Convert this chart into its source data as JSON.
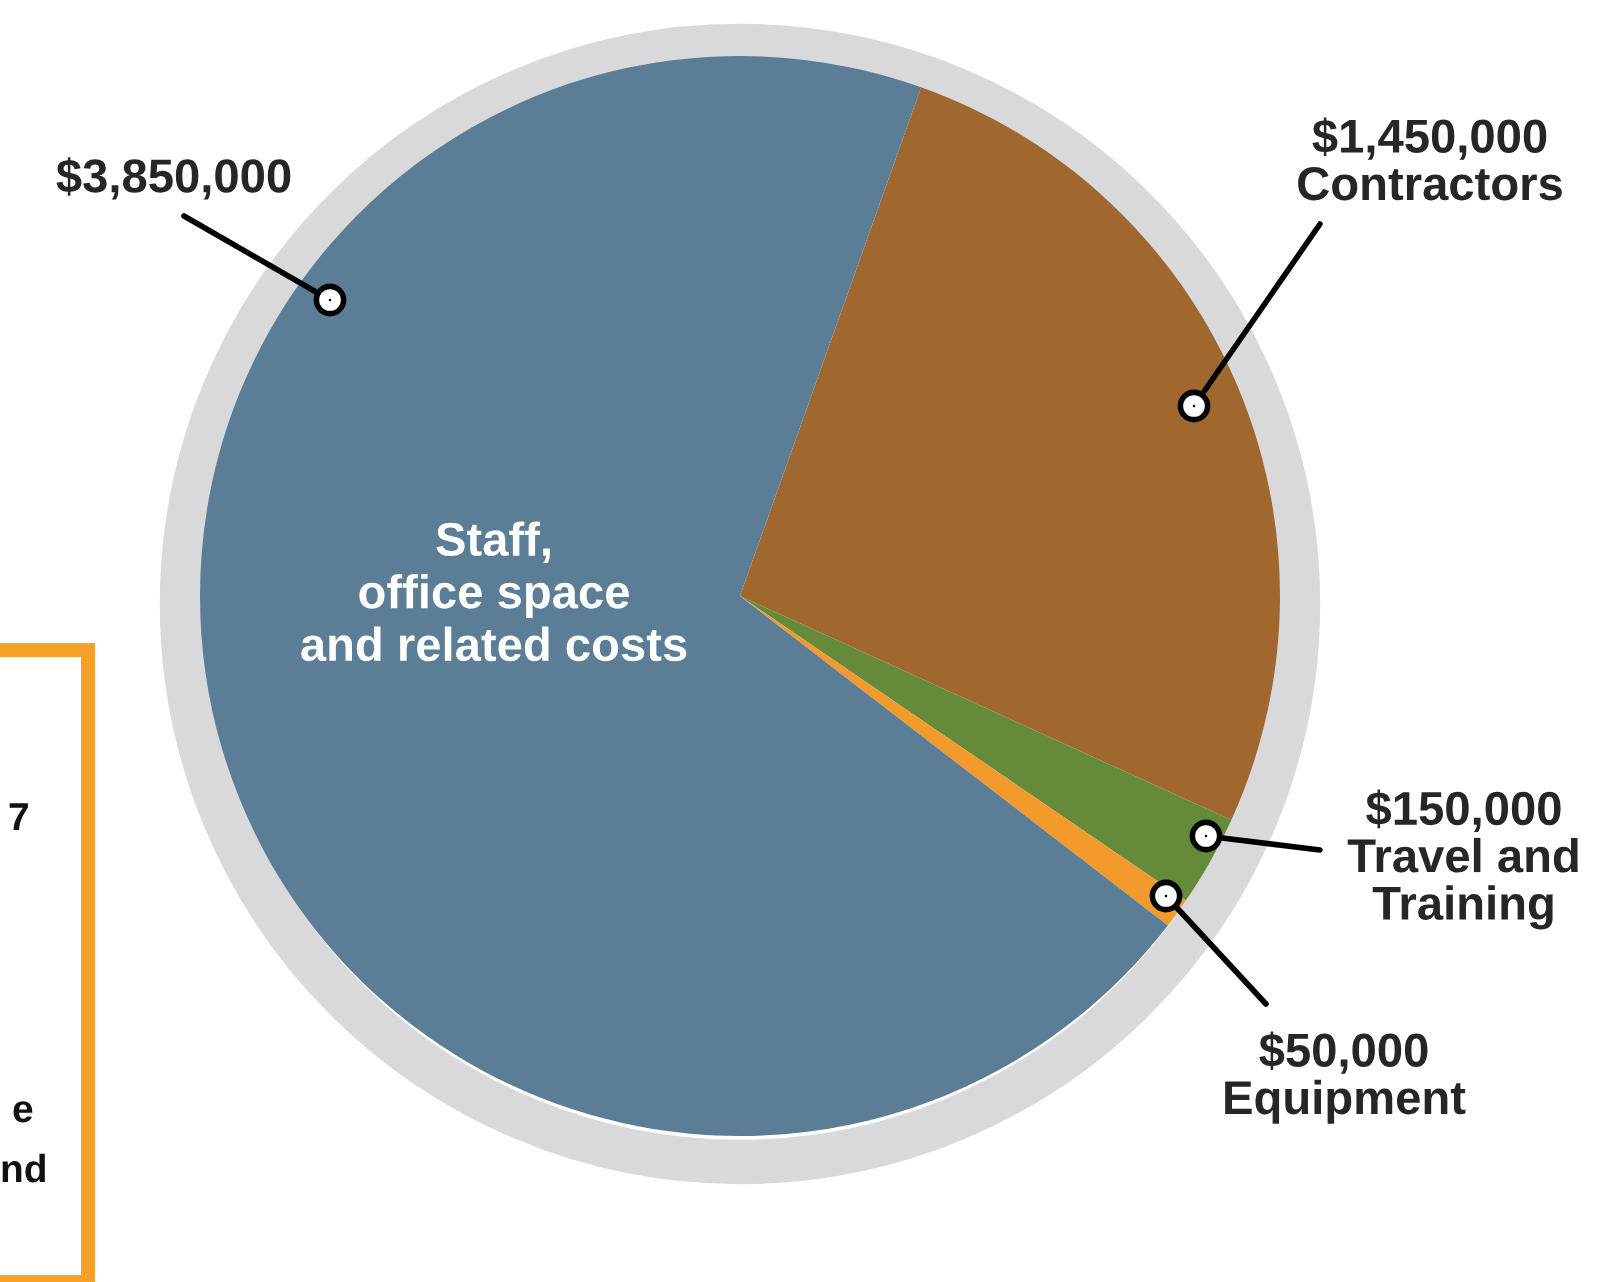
{
  "chart_data": {
    "type": "pie",
    "categories": [
      "Contractors",
      "Travel and\nTraining",
      "Equipment",
      "Staff,\noffice space\nand related costs"
    ],
    "values": [
      1450000,
      150000,
      50000,
      3850000
    ],
    "colors": [
      "#a0682e",
      "#648a3a",
      "#f39a2c",
      "#5b7d96"
    ],
    "value_labels": [
      "$1,450,000",
      "$150,000",
      "$50,000",
      "$3,850,000"
    ],
    "annotations": [
      "7",
      "e",
      "nd"
    ]
  }
}
